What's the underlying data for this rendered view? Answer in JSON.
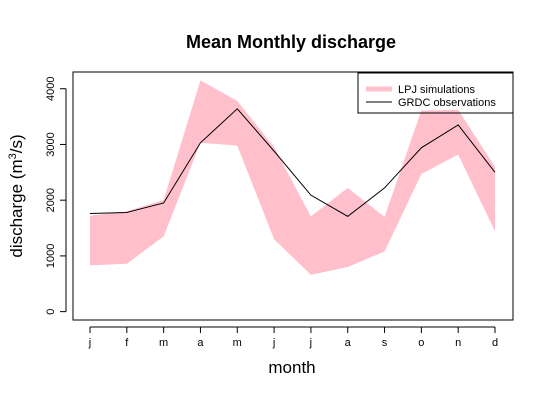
{
  "chart_data": {
    "type": "area",
    "title": "Mean Monthly discharge",
    "xlabel": "month",
    "ylabel_main": "discharge (m",
    "ylabel_sup": "3",
    "ylabel_tail": "/s)",
    "categories": [
      "j",
      "f",
      "m",
      "a",
      "m",
      "j",
      "j",
      "a",
      "s",
      "o",
      "n",
      "d"
    ],
    "yticks": [
      0,
      1000,
      2000,
      3000,
      4000
    ],
    "ylim": [
      -150,
      4300
    ],
    "band": {
      "name": "LPJ simulations",
      "color": "#ffc0cb",
      "lower": [
        830,
        860,
        1350,
        3030,
        2980,
        1300,
        660,
        800,
        1080,
        2470,
        2820,
        1440
      ],
      "upper": [
        1720,
        1800,
        2000,
        4150,
        3780,
        2950,
        1710,
        2220,
        1700,
        3610,
        3620,
        2600
      ]
    },
    "series": [
      {
        "name": "GRDC observations",
        "color": "#000000",
        "values": [
          1760,
          1780,
          1950,
          3030,
          3640,
          2880,
          2090,
          1710,
          2220,
          2940,
          3350,
          2500
        ]
      }
    ],
    "legend_position": "top-right",
    "grid": false
  }
}
